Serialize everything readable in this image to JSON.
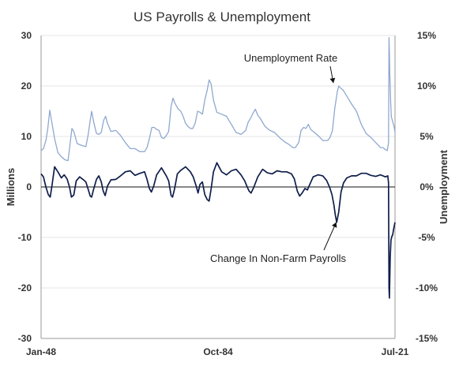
{
  "chart_data": {
    "type": "line",
    "title": "US Payrolls & Unemployment",
    "left_axis": {
      "label": "Millions",
      "ylim": [
        -30,
        30
      ],
      "ticks": [
        30,
        20,
        10,
        0,
        -10,
        -20,
        -30
      ],
      "tick_labels": [
        "30",
        "20",
        "10",
        "0",
        "-10",
        "-20",
        "-30"
      ]
    },
    "right_axis": {
      "label": "Unemployment",
      "ylim": [
        -15,
        15
      ],
      "ticks": [
        15,
        10,
        5,
        0,
        -5,
        -10,
        -15
      ],
      "tick_labels": [
        "15%",
        "10%",
        "5%",
        "0%",
        "-5%",
        "-10%",
        "-15%"
      ]
    },
    "x_axis": {
      "xlim": [
        1948.0,
        2021.5
      ],
      "tick_labels": [
        "Jan-48",
        "Oct-84",
        "Jul-21"
      ],
      "tick_values": [
        1948.0,
        1984.75,
        2021.5
      ]
    },
    "grid": true,
    "series": [
      {
        "name": "Unemployment Rate",
        "axis": "right",
        "color": "#8fa8cf",
        "x": [
          1948.0,
          1948.5,
          1949.0,
          1949.4,
          1949.8,
          1950.2,
          1950.8,
          1951.5,
          1952.2,
          1952.9,
          1953.6,
          1954.0,
          1954.4,
          1954.8,
          1955.5,
          1956.5,
          1957.3,
          1957.8,
          1958.2,
          1958.5,
          1958.9,
          1959.5,
          1960.0,
          1960.5,
          1961.0,
          1961.4,
          1961.8,
          1962.5,
          1963.5,
          1964.5,
          1965.5,
          1966.5,
          1967.5,
          1968.5,
          1969.5,
          1970.0,
          1970.5,
          1971.0,
          1971.5,
          1972.0,
          1972.5,
          1973.0,
          1973.5,
          1974.0,
          1974.5,
          1975.0,
          1975.4,
          1975.8,
          1976.5,
          1977.0,
          1977.5,
          1978.0,
          1978.5,
          1979.0,
          1979.5,
          1980.0,
          1980.5,
          1981.0,
          1981.5,
          1982.0,
          1982.5,
          1982.9,
          1983.3,
          1983.8,
          1984.5,
          1985.5,
          1986.5,
          1987.5,
          1988.5,
          1989.5,
          1990.0,
          1990.5,
          1991.0,
          1991.5,
          1992.0,
          1992.5,
          1993.0,
          1993.5,
          1994.5,
          1995.5,
          1996.5,
          1997.5,
          1998.5,
          1999.5,
          2000.3,
          2000.8,
          2001.5,
          2002.0,
          2002.5,
          2003.0,
          2003.5,
          2004.0,
          2004.5,
          2005.5,
          2006.5,
          2007.0,
          2007.5,
          2008.0,
          2008.5,
          2009.0,
          2009.5,
          2009.8,
          2010.2,
          2010.7,
          2011.5,
          2012.5,
          2013.5,
          2014.5,
          2015.5,
          2016.5,
          2017.5,
          2018.5,
          2019.0,
          2019.5,
          2019.9,
          2020.15,
          2020.25,
          2020.33,
          2020.42,
          2020.5,
          2020.6,
          2020.75,
          2020.9,
          2021.1,
          2021.3,
          2021.5
        ],
        "values": [
          3.6,
          3.8,
          4.6,
          5.8,
          7.6,
          6.5,
          4.8,
          3.4,
          3.0,
          2.7,
          2.6,
          4.2,
          5.8,
          5.5,
          4.3,
          4.1,
          4.0,
          5.2,
          6.6,
          7.5,
          6.5,
          5.3,
          5.2,
          5.4,
          6.6,
          7.0,
          6.3,
          5.5,
          5.6,
          5.1,
          4.4,
          3.8,
          3.8,
          3.5,
          3.5,
          3.9,
          4.8,
          5.9,
          5.9,
          5.7,
          5.6,
          4.9,
          4.8,
          5.1,
          5.5,
          8.0,
          8.8,
          8.3,
          7.7,
          7.5,
          7.0,
          6.3,
          6.0,
          5.8,
          5.8,
          6.3,
          7.5,
          7.4,
          7.2,
          8.6,
          9.6,
          10.6,
          10.2,
          8.6,
          7.4,
          7.2,
          7.0,
          6.2,
          5.4,
          5.2,
          5.4,
          5.6,
          6.4,
          6.8,
          7.3,
          7.7,
          7.1,
          6.8,
          6.0,
          5.6,
          5.4,
          4.9,
          4.5,
          4.2,
          3.9,
          3.9,
          4.4,
          5.6,
          5.9,
          5.8,
          6.2,
          5.7,
          5.5,
          5.1,
          4.6,
          4.6,
          4.6,
          4.9,
          5.6,
          7.8,
          9.4,
          10.0,
          9.8,
          9.6,
          9.0,
          8.2,
          7.5,
          6.2,
          5.3,
          4.9,
          4.4,
          3.9,
          3.9,
          3.7,
          3.6,
          4.4,
          14.8,
          13.3,
          11.1,
          10.2,
          8.4,
          6.9,
          6.7,
          6.3,
          6.0,
          5.4
        ]
      },
      {
        "name": "Change In Non-Farm Payrolls",
        "axis": "left",
        "color": "#0f1e4a",
        "x": [
          1948.0,
          1948.5,
          1949.0,
          1949.5,
          1949.9,
          1950.3,
          1950.8,
          1951.5,
          1952.2,
          1952.8,
          1953.4,
          1953.9,
          1954.3,
          1954.8,
          1955.3,
          1956.0,
          1956.7,
          1957.3,
          1957.8,
          1958.2,
          1958.5,
          1958.9,
          1959.5,
          1960.0,
          1960.5,
          1960.9,
          1961.3,
          1961.8,
          1962.5,
          1963.5,
          1964.5,
          1965.5,
          1966.5,
          1967.5,
          1968.5,
          1969.5,
          1970.0,
          1970.5,
          1970.9,
          1971.4,
          1972.0,
          1973.0,
          1974.0,
          1974.5,
          1975.0,
          1975.3,
          1975.7,
          1976.3,
          1977.0,
          1978.0,
          1979.0,
          1979.6,
          1980.2,
          1980.6,
          1981.0,
          1981.5,
          1982.0,
          1982.5,
          1982.9,
          1983.3,
          1983.8,
          1984.5,
          1985.5,
          1986.5,
          1987.5,
          1988.5,
          1989.5,
          1990.3,
          1990.8,
          1991.2,
          1991.6,
          1992.2,
          1993.0,
          1994.0,
          1995.0,
          1996.0,
          1997.0,
          1998.0,
          1999.0,
          2000.0,
          2000.6,
          2001.2,
          2001.7,
          2002.2,
          2002.8,
          2003.3,
          2003.8,
          2004.5,
          2005.5,
          2006.5,
          2007.3,
          2007.9,
          2008.4,
          2008.8,
          2009.1,
          2009.4,
          2009.8,
          2010.3,
          2010.8,
          2011.5,
          2012.5,
          2013.5,
          2014.5,
          2015.5,
          2016.5,
          2017.5,
          2018.5,
          2019.5,
          2020.0,
          2020.15,
          2020.25,
          2020.33,
          2020.5,
          2020.67,
          2020.85,
          2021.0,
          2021.2,
          2021.5
        ],
        "values": [
          2.6,
          2.0,
          0.0,
          -1.5,
          -2.0,
          0.5,
          4.0,
          3.0,
          1.8,
          2.4,
          1.6,
          0.0,
          -2.0,
          -1.6,
          1.2,
          2.0,
          1.5,
          1.0,
          -0.5,
          -1.8,
          -2.0,
          -0.5,
          1.5,
          2.2,
          1.0,
          -0.8,
          -1.7,
          0.2,
          1.4,
          1.5,
          2.2,
          3.0,
          3.2,
          2.3,
          2.7,
          3.0,
          1.5,
          -0.3,
          -1.0,
          0.2,
          2.4,
          3.8,
          2.2,
          1.2,
          -1.7,
          -2.0,
          -0.5,
          2.6,
          3.3,
          4.0,
          3.0,
          2.0,
          0.2,
          -1.2,
          0.5,
          1.0,
          -1.5,
          -2.5,
          -2.8,
          -0.4,
          3.0,
          4.8,
          3.0,
          2.4,
          3.2,
          3.5,
          2.4,
          1.2,
          0.0,
          -0.8,
          -1.2,
          0.0,
          2.0,
          3.5,
          2.8,
          2.6,
          3.2,
          3.0,
          3.0,
          2.6,
          1.6,
          -0.8,
          -1.8,
          -1.2,
          -0.3,
          -0.6,
          0.5,
          2.0,
          2.4,
          2.2,
          1.3,
          0.0,
          -1.5,
          -3.5,
          -5.5,
          -7.0,
          -5.0,
          -1.0,
          0.8,
          1.8,
          2.2,
          2.2,
          2.7,
          2.7,
          2.3,
          2.1,
          2.4,
          2.0,
          2.2,
          0.8,
          -20.0,
          -22.0,
          -14.0,
          -10.5,
          -9.8,
          -9.5,
          -8.4,
          -7.0
        ]
      }
    ],
    "annotations": [
      {
        "text": "Unemployment Rate",
        "arrow_to": {
          "x": 2008.7,
          "y": 10.3,
          "axis": "right"
        }
      },
      {
        "text": "Change In Non-Farm Payrolls",
        "arrow_to": {
          "x": 2009.3,
          "y": -7.0,
          "axis": "left"
        }
      }
    ]
  }
}
